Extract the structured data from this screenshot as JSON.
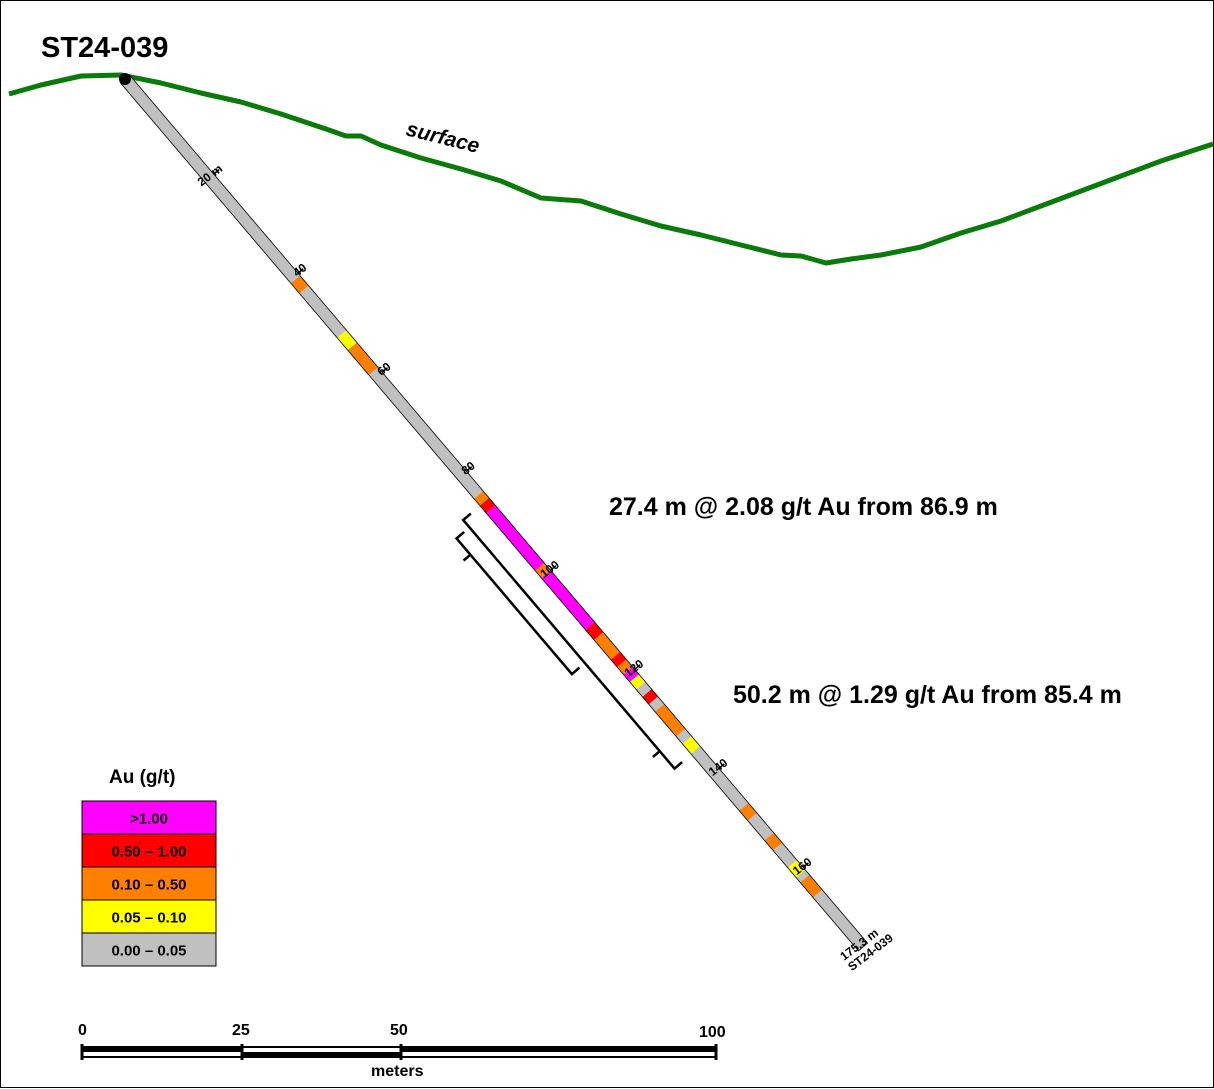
{
  "hole_id": "ST24-039",
  "surface_label": "surface",
  "total_depth_m": 175.3,
  "end_label_depth": "175.3 m",
  "end_label_hole": "ST24-039",
  "depth_ticks": [
    {
      "depth": 20,
      "label": "20 m"
    },
    {
      "depth": 40,
      "label": "40"
    },
    {
      "depth": 60,
      "label": "60"
    },
    {
      "depth": 80,
      "label": "80"
    },
    {
      "depth": 100,
      "label": "100"
    },
    {
      "depth": 120,
      "label": "120"
    },
    {
      "depth": 140,
      "label": "140"
    },
    {
      "depth": 160,
      "label": "160"
    }
  ],
  "intercepts": [
    {
      "from_m": 86.9,
      "length_m": 27.4,
      "label": "27.4 m @ 2.08 g/t Au from 86.9 m"
    },
    {
      "from_m": 85.4,
      "length_m": 50.2,
      "label": "50.2 m @ 1.29 g/t Au from 85.4 m"
    }
  ],
  "assay_intervals": [
    {
      "from": 40.5,
      "to": 42.5,
      "class": "0.10 – 0.50"
    },
    {
      "from": 51.5,
      "to": 54.0,
      "class": "0.05 – 0.10"
    },
    {
      "from": 54.0,
      "to": 59.0,
      "class": "0.10 – 0.50"
    },
    {
      "from": 84.0,
      "to": 85.4,
      "class": "0.10 – 0.50"
    },
    {
      "from": 85.4,
      "to": 86.9,
      "class": "0.50 – 1.00"
    },
    {
      "from": 86.9,
      "to": 98.5,
      "class": ">1.00"
    },
    {
      "from": 98.5,
      "to": 100.0,
      "class": "0.10 – 0.50"
    },
    {
      "from": 100.0,
      "to": 110.5,
      "class": ">1.00"
    },
    {
      "from": 110.5,
      "to": 112.5,
      "class": "0.50 – 1.00"
    },
    {
      "from": 112.5,
      "to": 116.5,
      "class": "0.10 – 0.50"
    },
    {
      "from": 116.5,
      "to": 118.0,
      "class": "0.50 – 1.00"
    },
    {
      "from": 118.0,
      "to": 119.5,
      "class": "0.10 – 0.50"
    },
    {
      "from": 119.5,
      "to": 121.0,
      "class": ">1.00"
    },
    {
      "from": 121.0,
      "to": 122.5,
      "class": "0.05 – 0.10"
    },
    {
      "from": 124.0,
      "to": 125.5,
      "class": "0.50 – 1.00"
    },
    {
      "from": 127.0,
      "to": 132.0,
      "class": "0.10 – 0.50"
    },
    {
      "from": 133.5,
      "to": 135.5,
      "class": "0.05 – 0.10"
    },
    {
      "from": 147.0,
      "to": 149.0,
      "class": "0.10 – 0.50"
    },
    {
      "from": 153.0,
      "to": 155.0,
      "class": "0.10 – 0.50"
    },
    {
      "from": 158.5,
      "to": 160.5,
      "class": "0.05 – 0.10"
    },
    {
      "from": 161.5,
      "to": 164.5,
      "class": "0.10 – 0.50"
    }
  ],
  "legend": {
    "title": "Au (g/t)",
    "classes": [
      {
        "label": ">1.00",
        "color": "#ff00ff"
      },
      {
        "label": "0.50 – 1.00",
        "color": "#ff0000"
      },
      {
        "label": "0.10 – 0.50",
        "color": "#ff8000"
      },
      {
        "label": "0.05 – 0.10",
        "color": "#ffff00"
      },
      {
        "label": "0.00 – 0.05",
        "color": "#c0c0c0"
      }
    ]
  },
  "scale_bar": {
    "unit": "meters",
    "ticks": [
      "0",
      "25",
      "50",
      "100"
    ]
  },
  "colors": {
    "surface": "#0a7a0a",
    "background_assay": "#c0c0c0",
    "outline": "#000000"
  }
}
